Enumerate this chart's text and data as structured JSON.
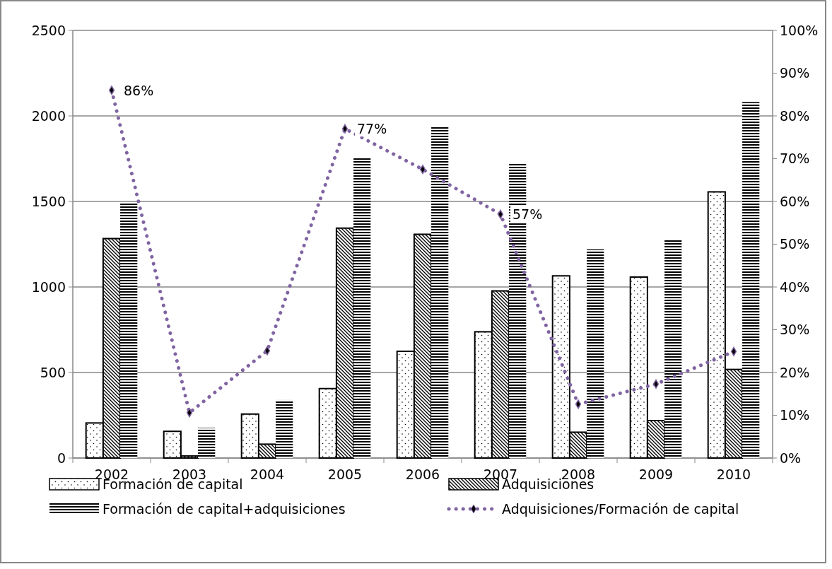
{
  "chart_data": {
    "type": "bar",
    "categories": [
      "2002",
      "2003",
      "2004",
      "2005",
      "2006",
      "2007",
      "2008",
      "2009",
      "2010"
    ],
    "series": [
      {
        "name": "Formación de capital",
        "color": "#000000",
        "values": [
          205,
          156,
          257,
          406,
          624,
          738,
          1065,
          1058,
          1556
        ]
      },
      {
        "name": "Adquisiciones",
        "color": "#000000",
        "values": [
          1283,
          12,
          81,
          1344,
          1308,
          977,
          151,
          219,
          518
        ]
      },
      {
        "name": "Formación de capital+adquisiciones",
        "color": "#000000",
        "values": [
          1495,
          176,
          339,
          1753,
          1939,
          1719,
          1220,
          1275,
          2081
        ]
      },
      {
        "name": "Adquisiciones/Formación de capital",
        "type": "line",
        "axis": "y2",
        "color": "#8064a2",
        "marker": "diamond",
        "line_style": "dotted",
        "values": [
          86,
          10.6,
          25.1,
          77,
          67.5,
          57,
          12.6,
          17.3,
          24.9
        ],
        "value_labels": [
          "86%",
          null,
          null,
          "77%",
          null,
          "57%",
          null,
          null,
          null
        ]
      }
    ],
    "ylim": [
      0,
      2500
    ],
    "yticks": [
      0,
      500,
      1000,
      1500,
      2000,
      2500
    ],
    "y2lim": [
      0,
      100
    ],
    "y2ticks": [
      {
        "value": 0,
        "label": "0%"
      },
      {
        "value": 10,
        "label": "10%"
      },
      {
        "value": 20,
        "label": "20%"
      },
      {
        "value": 30,
        "label": "30%"
      },
      {
        "value": 40,
        "label": "40%"
      },
      {
        "value": 50,
        "label": "50%"
      },
      {
        "value": 60,
        "label": "60%"
      },
      {
        "value": 70,
        "label": "70%"
      },
      {
        "value": 80,
        "label": "80%"
      },
      {
        "value": 90,
        "label": "90%"
      },
      {
        "value": 100,
        "label": "100%"
      }
    ],
    "grid": "y",
    "legend": "bottom"
  }
}
